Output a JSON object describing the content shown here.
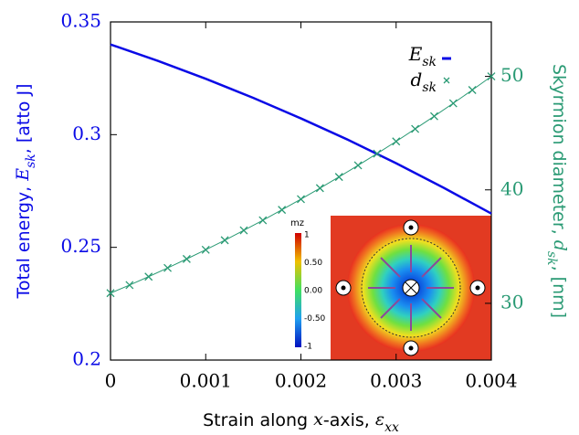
{
  "chart_data": {
    "type": "line",
    "xlabel": [
      "Strain along ",
      "x",
      "-axis, ",
      "ε",
      "xx"
    ],
    "ylabel": [
      "Total energy, ",
      "E",
      "sk",
      ", [atto J]"
    ],
    "y2label": [
      "Skyrmion diameter, ",
      "d",
      "sk",
      ", [nm]"
    ],
    "xlim": [
      0,
      0.004
    ],
    "xticks": [
      0,
      0.001,
      0.002,
      0.003,
      0.004
    ],
    "ylim": [
      0.2,
      0.35
    ],
    "yticks": [
      0.2,
      0.25,
      0.3,
      0.35
    ],
    "y2lim": [
      25,
      54.8
    ],
    "y2ticks": [
      30,
      40,
      50
    ],
    "legend": "upper right",
    "series": [
      {
        "name": "Esk",
        "color": "#0a0ae6",
        "axis": "y",
        "x": [
          0,
          0.0005,
          0.001,
          0.0015,
          0.002,
          0.0025,
          0.003,
          0.0035,
          0.004
        ],
        "values": [
          0.34,
          0.3327,
          0.3248,
          0.3163,
          0.3072,
          0.2976,
          0.2873,
          0.2764,
          0.265
        ]
      },
      {
        "name": "dsk",
        "color": "#2a9a74",
        "axis": "y2",
        "marker": "x",
        "x": [
          0,
          0.0002,
          0.0004,
          0.0006,
          0.0008,
          0.001,
          0.0012,
          0.0014,
          0.0016,
          0.0018,
          0.002,
          0.0022,
          0.0024,
          0.0026,
          0.0028,
          0.003,
          0.0032,
          0.0034,
          0.0036,
          0.0038,
          0.004
        ],
        "values": [
          30.9,
          31.61,
          32.35,
          33.12,
          33.91,
          34.72,
          35.56,
          36.43,
          37.32,
          38.24,
          39.18,
          40.15,
          41.14,
          42.16,
          43.2,
          44.27,
          45.37,
          46.49,
          47.63,
          48.8,
          50.0
        ]
      }
    ],
    "inset": {
      "title": "mz",
      "colorbar_labels": [
        "1",
        "0.50",
        "0.00",
        "-0.50",
        "-1"
      ]
    }
  }
}
